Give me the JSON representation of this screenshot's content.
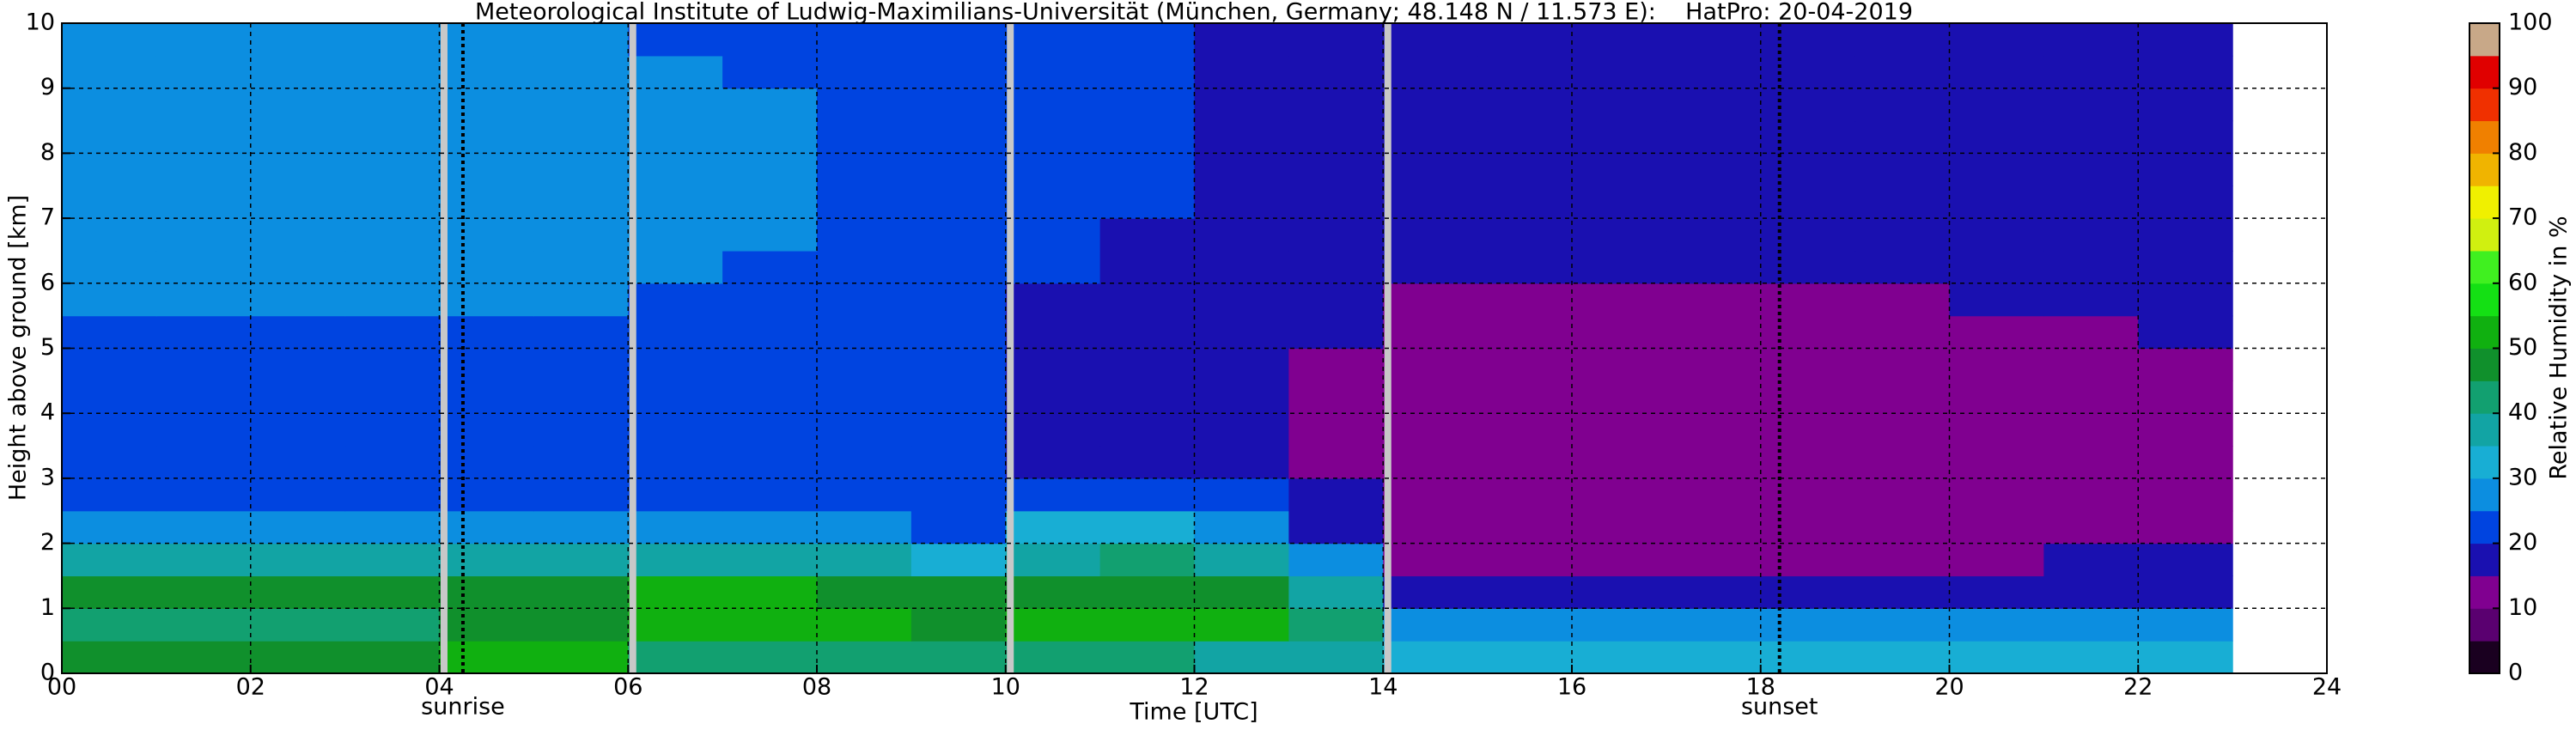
{
  "chart_data": {
    "type": "heatmap",
    "title": "Meteorological Institute of Ludwig-Maximilians-Universität (München, Germany; 48.148 N / 11.573 E):    HatPro: 20-04-2019",
    "xlabel": "Time [UTC]",
    "ylabel": "Height above ground [km]",
    "colorbar_label": "Relative Humidity in %",
    "xlim": [
      0,
      24
    ],
    "ylim": [
      0,
      10
    ],
    "xticks": [
      {
        "value": 0,
        "label": "00"
      },
      {
        "value": 2,
        "label": "02"
      },
      {
        "value": 4,
        "label": "04"
      },
      {
        "value": 6,
        "label": "06"
      },
      {
        "value": 8,
        "label": "08"
      },
      {
        "value": 10,
        "label": "10"
      },
      {
        "value": 12,
        "label": "12"
      },
      {
        "value": 14,
        "label": "14"
      },
      {
        "value": 16,
        "label": "16"
      },
      {
        "value": 18,
        "label": "18"
      },
      {
        "value": 20,
        "label": "20"
      },
      {
        "value": 22,
        "label": "22"
      },
      {
        "value": 24,
        "label": "24"
      }
    ],
    "yticks": [
      0,
      1,
      2,
      3,
      4,
      5,
      6,
      7,
      8,
      9,
      10
    ],
    "grid": true,
    "clim": [
      0,
      100
    ],
    "cticks": [
      0,
      10,
      20,
      30,
      40,
      50,
      60,
      70,
      80,
      90,
      100
    ],
    "levels": [
      0,
      5,
      10,
      15,
      20,
      25,
      30,
      35,
      40,
      45,
      50,
      55,
      60,
      65,
      70,
      75,
      80,
      85,
      90,
      95,
      100
    ],
    "colors": [
      "#1a0020",
      "#5a0070",
      "#800090",
      "#1a10b0",
      "#0044e0",
      "#0c8ee0",
      "#18aed4",
      "#12a4a4",
      "#12a070",
      "#10902c",
      "#10b010",
      "#14e014",
      "#40f020",
      "#d0f010",
      "#f0f000",
      "#f0b400",
      "#f08000",
      "#f03000",
      "#e00000",
      "#c8a888"
    ],
    "missing_color": "#c8c8c8",
    "gaps": [
      4.05,
      6.05,
      10.05,
      14.05
    ],
    "annotations": [
      {
        "label": "sunrise",
        "x": 4.25
      },
      {
        "label": "sunset",
        "x": 18.2
      }
    ],
    "x_bins": [
      0,
      1,
      2,
      3,
      4,
      5,
      6,
      7,
      8,
      9,
      10,
      11,
      12,
      13,
      14,
      15,
      16,
      17,
      18,
      19,
      20,
      21,
      22,
      23
    ],
    "y_bins": [
      0,
      0.5,
      1,
      1.5,
      2,
      2.5,
      3,
      3.5,
      4,
      4.5,
      5,
      5.5,
      6,
      6.5,
      7,
      7.5,
      8,
      8.5,
      9,
      9.5,
      10
    ],
    "values": [
      [
        47,
        47,
        48,
        48,
        52,
        50,
        42,
        42,
        41,
        40,
        40,
        40,
        38,
        35,
        30,
        30,
        30,
        30,
        30,
        30,
        30,
        30,
        30
      ],
      [
        44,
        44,
        44,
        44,
        45,
        46,
        52,
        52,
        50,
        48,
        52,
        50,
        50,
        42,
        28,
        28,
        28,
        28,
        28,
        28,
        28,
        28,
        28
      ],
      [
        45,
        45,
        45,
        45,
        45,
        46,
        50,
        50,
        48,
        46,
        48,
        48,
        46,
        38,
        18,
        18,
        18,
        18,
        18,
        18,
        18,
        18,
        17
      ],
      [
        38,
        38,
        38,
        38,
        38,
        38,
        36,
        36,
        36,
        32,
        38,
        40,
        36,
        28,
        13,
        13,
        13,
        13,
        13,
        13,
        14,
        16,
        17
      ],
      [
        27,
        27,
        27,
        27,
        27,
        27,
        27,
        27,
        26,
        24,
        32,
        32,
        28,
        18,
        11,
        11,
        11,
        11,
        11,
        11,
        11,
        12,
        12
      ],
      [
        23,
        23,
        23,
        23,
        24,
        24,
        24,
        24,
        23,
        21,
        20,
        22,
        20,
        17,
        11,
        11,
        11,
        11,
        11,
        11,
        11,
        11,
        11
      ],
      [
        22,
        22,
        22,
        22,
        23,
        23,
        22,
        22,
        21,
        20,
        19,
        18,
        18,
        14,
        11,
        11,
        11,
        11,
        11,
        11,
        11,
        11,
        12
      ],
      [
        22,
        22,
        22,
        22,
        23,
        23,
        22,
        22,
        21,
        20,
        19,
        18,
        18,
        14,
        11,
        11,
        11,
        11,
        11,
        11,
        11,
        11,
        12
      ],
      [
        22,
        22,
        22,
        22,
        23,
        23,
        22,
        22,
        21,
        20,
        19,
        18,
        18,
        14,
        11,
        11,
        11,
        11,
        11,
        11,
        11,
        11,
        12
      ],
      [
        22,
        22,
        22,
        22,
        23,
        23,
        22,
        22,
        21,
        20,
        19,
        18,
        18,
        14,
        11,
        11,
        11,
        11,
        11,
        11,
        11,
        12,
        13
      ],
      [
        24,
        24,
        24,
        24,
        24,
        24,
        23,
        23,
        22,
        21,
        19,
        18,
        17,
        15,
        12,
        12,
        12,
        12,
        12,
        12,
        12,
        13,
        15
      ],
      [
        25,
        25,
        25,
        25,
        25,
        25,
        24,
        23,
        22,
        21,
        19,
        18,
        17,
        16,
        13,
        13,
        13,
        13,
        13,
        14,
        15,
        16,
        17
      ],
      [
        27,
        27,
        27,
        27,
        26,
        26,
        25,
        24,
        23,
        22,
        20,
        19,
        18,
        17,
        15,
        15,
        16,
        16,
        16,
        17,
        17,
        18,
        18
      ],
      [
        28,
        28,
        28,
        28,
        27,
        27,
        26,
        25,
        24,
        22,
        20,
        19,
        18,
        17,
        17,
        17,
        17,
        17,
        17,
        17,
        18,
        18,
        18
      ],
      [
        28,
        28,
        28,
        28,
        27,
        27,
        26,
        25,
        24,
        22,
        21,
        20,
        19,
        18,
        17,
        17,
        17,
        17,
        17,
        17,
        18,
        18,
        19
      ],
      [
        28,
        28,
        28,
        28,
        27,
        27,
        26,
        25,
        24,
        22,
        21,
        20,
        19,
        18,
        17,
        17,
        17,
        17,
        17,
        17,
        18,
        18,
        19
      ],
      [
        27,
        27,
        27,
        27,
        27,
        27,
        26,
        25,
        24,
        22,
        21,
        20,
        19,
        18,
        17,
        17,
        17,
        17,
        17,
        17,
        18,
        18,
        19
      ],
      [
        27,
        27,
        27,
        27,
        26,
        26,
        25,
        25,
        24,
        22,
        21,
        20,
        19,
        18,
        17,
        17,
        17,
        17,
        17,
        17,
        18,
        18,
        19
      ],
      [
        26,
        26,
        26,
        26,
        26,
        26,
        25,
        24,
        23,
        22,
        21,
        20,
        19,
        18,
        17,
        17,
        17,
        17,
        17,
        17,
        18,
        18,
        19
      ],
      [
        25,
        25,
        25,
        25,
        25,
        25,
        24,
        24,
        23,
        22,
        21,
        20,
        19,
        18,
        18,
        18,
        18,
        18,
        18,
        18,
        18,
        18,
        19
      ]
    ]
  }
}
